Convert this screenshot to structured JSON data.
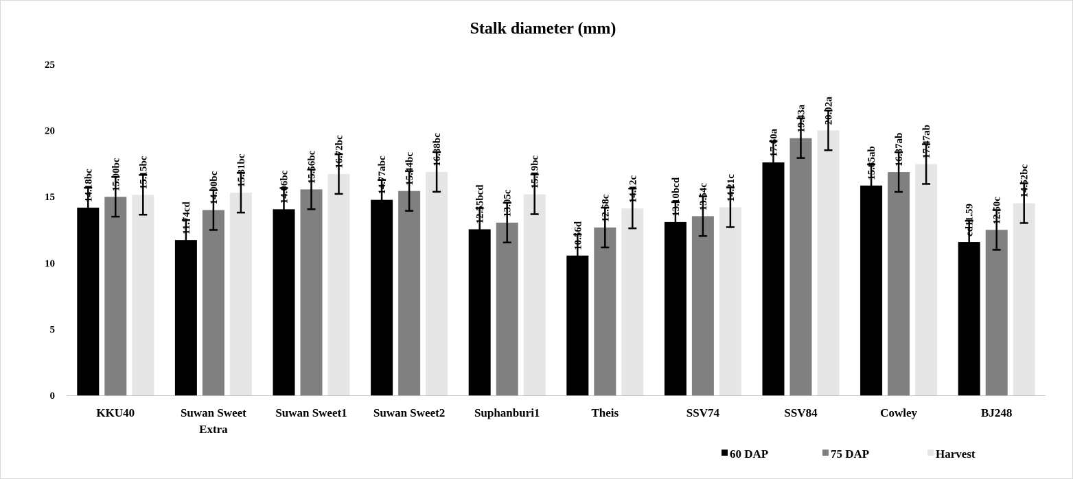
{
  "chart_data": {
    "type": "bar",
    "title": "Stalk diameter (mm)",
    "xlabel": "",
    "ylabel": "",
    "ylim": [
      0,
      25
    ],
    "yticks": [
      0,
      5,
      10,
      15,
      20,
      25
    ],
    "grid": false,
    "legend_position": "bottom-right",
    "categories": [
      [
        "KKU40"
      ],
      [
        "Suwan Sweet",
        "Extra"
      ],
      [
        "Suwan Sweet1"
      ],
      [
        "Suwan Sweet2"
      ],
      [
        "Suphanburi1"
      ],
      [
        "Theis"
      ],
      [
        "SSV74"
      ],
      [
        "SSV84"
      ],
      [
        "Cowley"
      ],
      [
        "BJ248"
      ]
    ],
    "series": [
      {
        "name": "60 DAP",
        "color": "#000000",
        "values": [
          14.18,
          11.74,
          14.06,
          14.77,
          12.55,
          10.56,
          13.1,
          17.6,
          15.85,
          11.59
        ],
        "errors": [
          1.5,
          1.5,
          1.6,
          1.5,
          1.6,
          1.6,
          1.5,
          1.6,
          1.6,
          1.6
        ],
        "labels": [
          "14.18bc",
          "11.74cd",
          "14.06bc",
          "14.77abc",
          "12.55bcd",
          "10.56d",
          "13.10bcd",
          "17.60a",
          "15.85ab",
          "cd11.59"
        ]
      },
      {
        "name": "75 DAP",
        "color": "#808080",
        "values": [
          15.0,
          14.0,
          15.56,
          15.44,
          13.05,
          12.68,
          13.54,
          19.43,
          16.87,
          12.5
        ],
        "errors": [
          1.5,
          1.5,
          1.5,
          1.5,
          1.5,
          1.5,
          1.5,
          1.5,
          1.5,
          1.5
        ],
        "labels": [
          "15.00bc",
          "14.00bc",
          "15.56bc",
          "15.44bc",
          "13.05c",
          "12.68c",
          "13.54c",
          "19.43a",
          "16.87ab",
          "12.50c"
        ]
      },
      {
        "name": "Harvest",
        "color": "#e6e6e6",
        "values": [
          15.15,
          15.31,
          16.72,
          16.88,
          15.19,
          14.12,
          14.21,
          20.02,
          17.47,
          14.52
        ],
        "errors": [
          1.5,
          1.5,
          1.5,
          1.5,
          1.5,
          1.5,
          1.5,
          1.5,
          1.5,
          1.5
        ],
        "labels": [
          "15.15bc",
          "15.31bc",
          "16.72bc",
          "16.88bc",
          "15.19bc",
          "14.12c",
          "14.21c",
          "20.02a",
          "17.47ab",
          "14.52bc"
        ]
      }
    ]
  }
}
